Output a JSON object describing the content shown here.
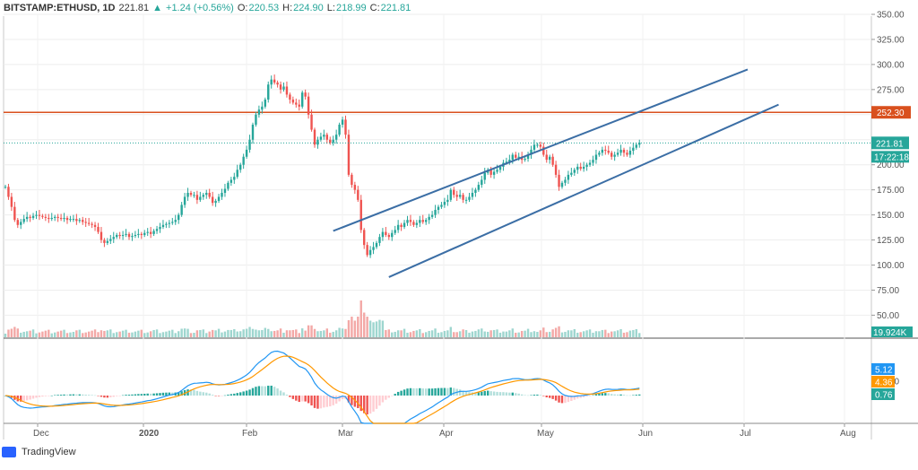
{
  "header": {
    "symbol": "BITSTAMP:ETHUSD, 1D",
    "last": "221.81",
    "change": "+1.24 (+0.56%)",
    "open_label": "O:",
    "open": "220.53",
    "high_label": "H:",
    "high": "224.90",
    "low_label": "L:",
    "low": "218.99",
    "close_label": "C:",
    "close": "221.81"
  },
  "brand": {
    "label": "TradingView"
  },
  "colors": {
    "up": "#26a69a",
    "down": "#ef5350",
    "resistance": "#d9501e",
    "channel": "#3b6ea5",
    "macd": "#2196f3",
    "signal": "#ff9800",
    "hist_up": "#26a69a",
    "hist_up_light": "#b2dfdb",
    "hist_down": "#ef5350",
    "hist_down_light": "#ffcdd2"
  },
  "chart_data": {
    "type": "candlestick",
    "price_axis": {
      "ticks": [
        50,
        75,
        100,
        125,
        150,
        175,
        200,
        225,
        250,
        275,
        300,
        325,
        350
      ],
      "ylim": [
        28,
        350
      ]
    },
    "time_axis": {
      "labels": [
        "Dec",
        "2020",
        "Feb",
        "Mar",
        "Apr",
        "May",
        "Jun",
        "Jul",
        "Aug"
      ]
    },
    "price_badges": {
      "resistance": "252.30",
      "last_price": "221.81",
      "countdown": "17:22:18",
      "volume": "19.924K"
    },
    "macd_badges": {
      "macd": "5.12",
      "signal": "4.36",
      "histogram": "0.76"
    },
    "macd_axis_tick": "10.00",
    "resistance_level": 252.3,
    "channel_lines": [
      {
        "name": "",
        "from": {
          "bar": 106,
          "price": 134
        },
        "to": {
          "bar": 240,
          "price": 295
        }
      },
      {
        "name": "",
        "from": {
          "bar": 124,
          "price": 88
        },
        "to": {
          "bar": 250,
          "price": 260
        }
      }
    ],
    "closes": [
      178,
      168,
      158,
      145,
      140,
      143,
      146,
      148,
      147,
      149,
      150,
      149,
      148,
      147,
      146,
      147,
      148,
      147,
      146,
      147,
      145,
      146,
      146,
      144,
      145,
      143,
      142,
      141,
      140,
      138,
      133,
      125,
      122,
      124,
      126,
      128,
      130,
      129,
      130,
      131,
      128,
      129,
      130,
      131,
      130,
      132,
      133,
      131,
      134,
      136,
      138,
      140,
      141,
      142,
      143,
      145,
      150,
      160,
      168,
      172,
      170,
      170,
      165,
      168,
      170,
      172,
      168,
      162,
      164,
      168,
      172,
      176,
      182,
      185,
      188,
      195,
      200,
      208,
      215,
      225,
      240,
      250,
      255,
      258,
      265,
      280,
      285,
      282,
      280,
      275,
      278,
      270,
      265,
      262,
      260,
      258,
      272,
      268,
      250,
      235,
      220,
      225,
      228,
      230,
      225,
      222,
      225,
      230,
      240,
      245,
      230,
      190,
      180,
      175,
      165,
      135,
      120,
      110,
      115,
      118,
      122,
      128,
      133,
      130,
      128,
      132,
      135,
      140,
      138,
      142,
      145,
      143,
      140,
      142,
      145,
      143,
      145,
      148,
      150,
      155,
      158,
      160,
      163,
      165,
      175,
      170,
      168,
      170,
      165,
      165,
      168,
      172,
      175,
      180,
      185,
      192,
      195,
      190,
      193,
      195,
      198,
      202,
      203,
      205,
      210,
      207,
      208,
      205,
      206,
      210,
      215,
      220,
      220,
      218,
      210,
      205,
      208,
      200,
      190,
      178,
      182,
      185,
      190,
      192,
      195,
      198,
      196,
      198,
      200,
      202,
      205,
      210,
      212,
      215,
      214,
      212,
      208,
      210,
      212,
      215,
      212,
      210,
      214,
      217,
      220,
      222
    ]
  }
}
